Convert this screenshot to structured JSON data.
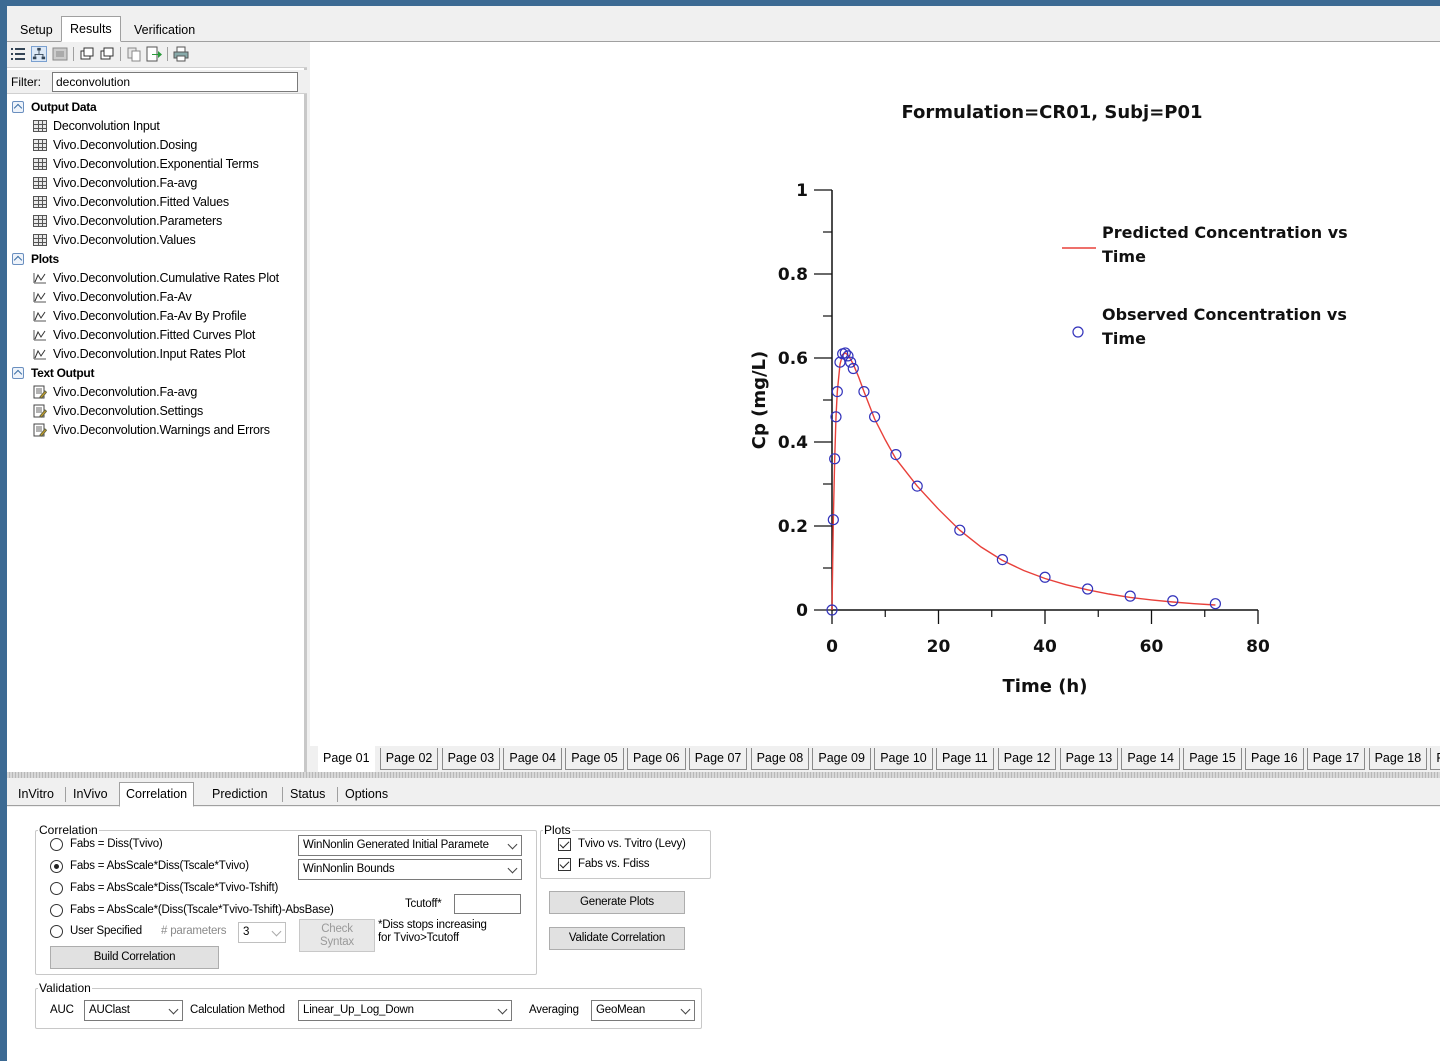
{
  "top_tabs": [
    "Setup",
    "Results",
    "Verification"
  ],
  "filter": {
    "label": "Filter:",
    "value": "deconvolution"
  },
  "tree": {
    "output_data": {
      "label": "Output Data",
      "items": [
        "Deconvolution Input",
        "Vivo.Deconvolution.Dosing",
        "Vivo.Deconvolution.Exponential Terms",
        "Vivo.Deconvolution.Fa-avg",
        "Vivo.Deconvolution.Fitted Values",
        "Vivo.Deconvolution.Parameters",
        "Vivo.Deconvolution.Values"
      ]
    },
    "plots": {
      "label": "Plots",
      "items": [
        "Vivo.Deconvolution.Cumulative Rates Plot",
        "Vivo.Deconvolution.Fa-Av",
        "Vivo.Deconvolution.Fa-Av By Profile",
        "Vivo.Deconvolution.Fitted Curves Plot",
        "Vivo.Deconvolution.Input Rates Plot"
      ]
    },
    "text_output": {
      "label": "Text Output",
      "items": [
        "Vivo.Deconvolution.Fa-avg",
        "Vivo.Deconvolution.Settings",
        "Vivo.Deconvolution.Warnings and Errors"
      ]
    }
  },
  "chart_data": {
    "type": "line",
    "title": "Formulation=CR01, Subj=P01",
    "xlabel": "Time (h)",
    "ylabel": "Cp (mg/L)",
    "xlim": [
      0,
      80
    ],
    "ylim": [
      0,
      1
    ],
    "xticks": [
      0,
      20,
      40,
      60,
      80
    ],
    "yticks": [
      0,
      0.2,
      0.4,
      0.6,
      0.8,
      1
    ],
    "ytick_labels": [
      "0",
      "0.2",
      "0.4",
      "0.6",
      "0.8",
      "1"
    ],
    "legend_position": "top-right",
    "colors": {
      "predicted": "#e8403a",
      "observed": "#3333bb"
    },
    "series": [
      {
        "name": "Predicted Concentration vs Time",
        "style": "line",
        "x": [
          0,
          0.25,
          0.5,
          0.75,
          1,
          1.5,
          2,
          2.5,
          3,
          3.5,
          4,
          5,
          6,
          8,
          10,
          12,
          16,
          20,
          24,
          28,
          32,
          36,
          40,
          44,
          48,
          52,
          56,
          60,
          64,
          68,
          72
        ],
        "y": [
          0,
          0.21,
          0.36,
          0.46,
          0.52,
          0.585,
          0.608,
          0.612,
          0.607,
          0.597,
          0.585,
          0.555,
          0.52,
          0.455,
          0.405,
          0.36,
          0.295,
          0.24,
          0.19,
          0.15,
          0.118,
          0.094,
          0.075,
          0.06,
          0.048,
          0.038,
          0.03,
          0.024,
          0.019,
          0.015,
          0.012
        ]
      },
      {
        "name": "Observed Concentration vs Time",
        "style": "scatter",
        "x": [
          0,
          0.25,
          0.5,
          0.75,
          1,
          1.5,
          2,
          2.5,
          3,
          3.5,
          4,
          6,
          8,
          12,
          16,
          24,
          32,
          40,
          48,
          56,
          64,
          72
        ],
        "y": [
          0,
          0.215,
          0.36,
          0.46,
          0.52,
          0.59,
          0.61,
          0.612,
          0.605,
          0.59,
          0.575,
          0.52,
          0.46,
          0.37,
          0.295,
          0.19,
          0.12,
          0.078,
          0.05,
          0.033,
          0.022,
          0.015
        ]
      }
    ]
  },
  "page_tabs": [
    "Page 01",
    "Page 02",
    "Page 03",
    "Page 04",
    "Page 05",
    "Page 06",
    "Page 07",
    "Page 08",
    "Page 09",
    "Page 10",
    "Page 11",
    "Page 12",
    "Page 13",
    "Page 14",
    "Page 15",
    "Page 16",
    "Page 17",
    "Page 18",
    "Pa"
  ],
  "bottom_tabs": [
    "InVitro",
    "InVivo",
    "Correlation",
    "Prediction",
    "Status",
    "Options"
  ],
  "correlation": {
    "legend": "Correlation",
    "options": [
      "Fabs = Diss(Tvivo)",
      "Fabs = AbsScale*Diss(Tscale*Tvivo)",
      "Fabs = AbsScale*Diss(Tscale*Tvivo-Tshift)",
      "Fabs = AbsScale*(Diss(Tscale*Tvivo-Tshift)-AbsBase)",
      "User Specified"
    ],
    "initial_params_select": "WinNonlin Generated Initial Paramete",
    "bounds_select": "WinNonlin Bounds",
    "tcutoff_label": "Tcutoff*",
    "tcutoff_value": "",
    "num_params_label": "# parameters",
    "num_params_value": "3",
    "check_syntax": "Check Syntax",
    "note_line1": "*Diss stops increasing",
    "note_line2": "for Tvivo>Tcutoff",
    "build_button": "Build Correlation"
  },
  "plots_box": {
    "legend": "Plots",
    "checks": [
      "Tvivo vs. Tvitro (Levy)",
      "Fabs vs. Fdiss"
    ],
    "generate_button": "Generate Plots",
    "validate_button": "Validate Correlation"
  },
  "validation": {
    "legend": "Validation",
    "auc_label": "AUC",
    "auc_value": "AUClast",
    "calc_label": "Calculation Method",
    "calc_value": "Linear_Up_Log_Down",
    "avg_label": "Averaging",
    "avg_value": "GeoMean"
  }
}
